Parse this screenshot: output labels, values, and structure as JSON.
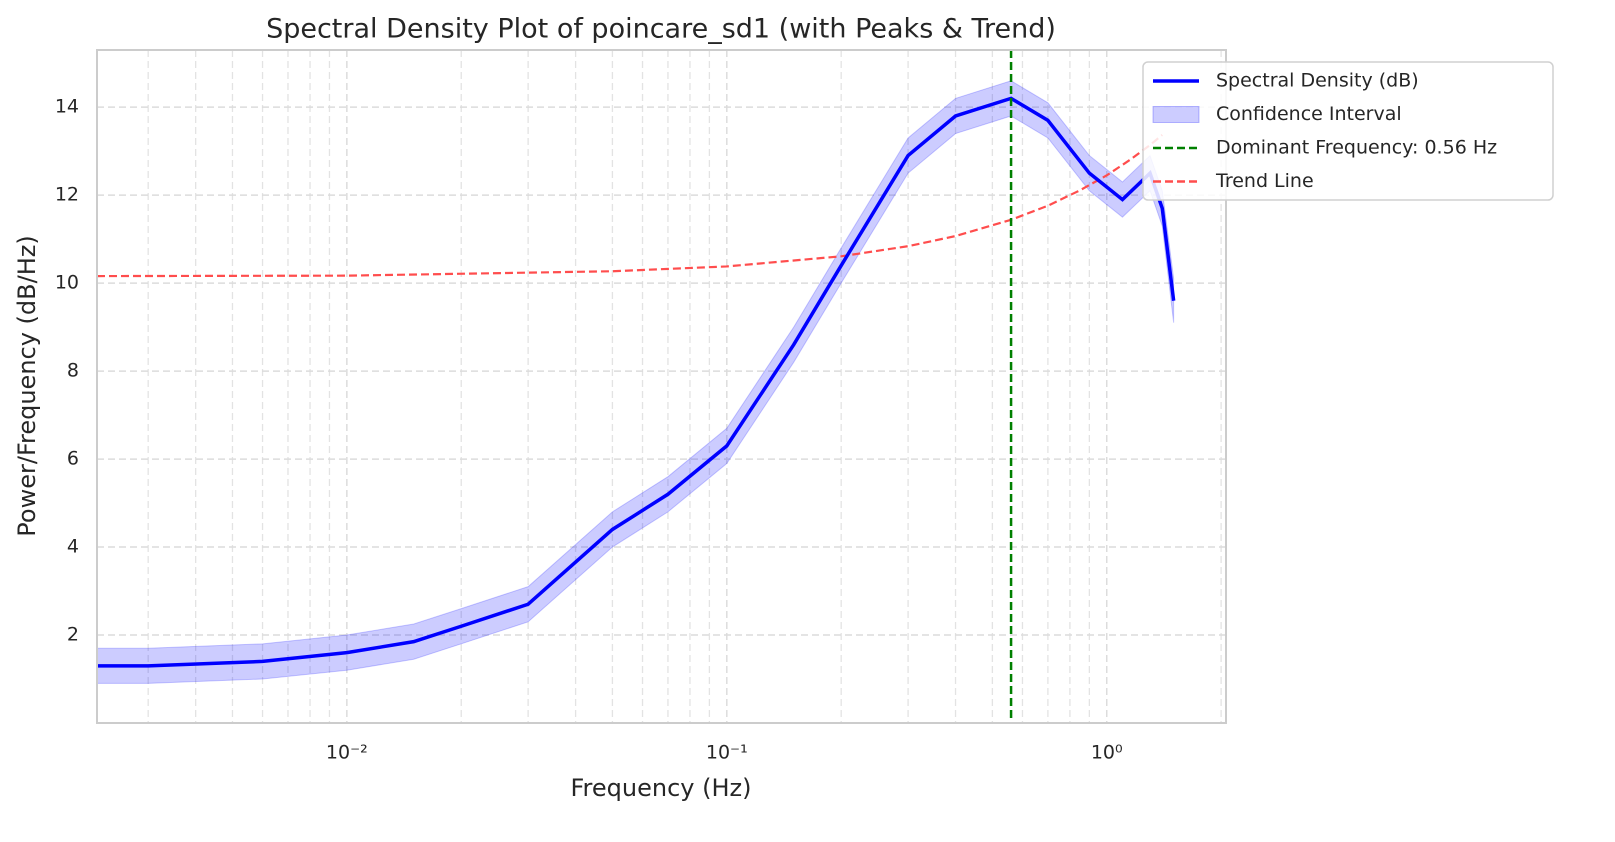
{
  "chart_data": {
    "type": "line",
    "title": "Spectral Density Plot of poincare_sd1 (with Peaks & Trend)",
    "x_label": "Frequency (Hz)",
    "y_label": "Power/Frequency (dB/Hz)",
    "x_scale": "log",
    "grid": true,
    "legend_position": "upper right",
    "xlim": [
      0.0022,
      2.06
    ],
    "ylim": [
      0,
      15.3
    ],
    "xticks": [
      {
        "value": 0.01,
        "label": "10⁻²"
      },
      {
        "value": 0.1,
        "label": "10⁻¹"
      },
      {
        "value": 1,
        "label": "10⁰"
      }
    ],
    "x_minor_ticks": [
      0.003,
      0.004,
      0.005,
      0.006,
      0.007,
      0.008,
      0.009,
      0.02,
      0.03,
      0.04,
      0.05,
      0.06,
      0.07,
      0.08,
      0.09,
      0.2,
      0.3,
      0.4,
      0.5,
      0.6,
      0.7,
      0.8,
      0.9,
      2
    ],
    "yticks": [
      2,
      4,
      6,
      8,
      10,
      12,
      14
    ],
    "x": [
      0.0022,
      0.003,
      0.006,
      0.01,
      0.015,
      0.02,
      0.03,
      0.05,
      0.07,
      0.1,
      0.15,
      0.2,
      0.3,
      0.4,
      0.56,
      0.7,
      0.9,
      1.1,
      1.3,
      1.4,
      1.5
    ],
    "series": [
      {
        "name": "Spectral Density (dB)",
        "color": "#0000ff",
        "values": [
          1.3,
          1.3,
          1.4,
          1.6,
          1.85,
          2.2,
          2.7,
          4.4,
          5.2,
          6.3,
          8.6,
          10.4,
          12.9,
          13.8,
          14.2,
          13.7,
          12.5,
          11.9,
          12.5,
          11.7,
          9.6
        ]
      }
    ],
    "band": {
      "name": "Confidence Interval",
      "color": "#0000ff",
      "lower": [
        0.9,
        0.9,
        1.0,
        1.2,
        1.45,
        1.8,
        2.3,
        4.0,
        4.8,
        5.9,
        8.2,
        10.0,
        12.5,
        13.4,
        13.8,
        13.3,
        12.1,
        11.5,
        12.1,
        11.3,
        9.1
      ],
      "upper": [
        1.7,
        1.7,
        1.8,
        2.0,
        2.25,
        2.6,
        3.1,
        4.8,
        5.6,
        6.7,
        9.0,
        10.8,
        13.3,
        14.2,
        14.6,
        14.1,
        12.9,
        12.3,
        12.9,
        12.1,
        10.1
      ]
    },
    "vline": {
      "name": "Dominant Frequency: 0.56 Hz",
      "x": 0.56,
      "color": "#008000"
    },
    "trend": {
      "name": "Trend Line",
      "color": "#ff4d4d",
      "x": [
        0.0022,
        0.01,
        0.05,
        0.1,
        0.2,
        0.3,
        0.4,
        0.56,
        0.7,
        0.85,
        1.0,
        1.15,
        1.3,
        1.4
      ],
      "values": [
        10.16,
        10.17,
        10.27,
        10.38,
        10.61,
        10.84,
        11.07,
        11.44,
        11.76,
        12.11,
        12.45,
        12.8,
        13.14,
        13.37
      ]
    }
  }
}
